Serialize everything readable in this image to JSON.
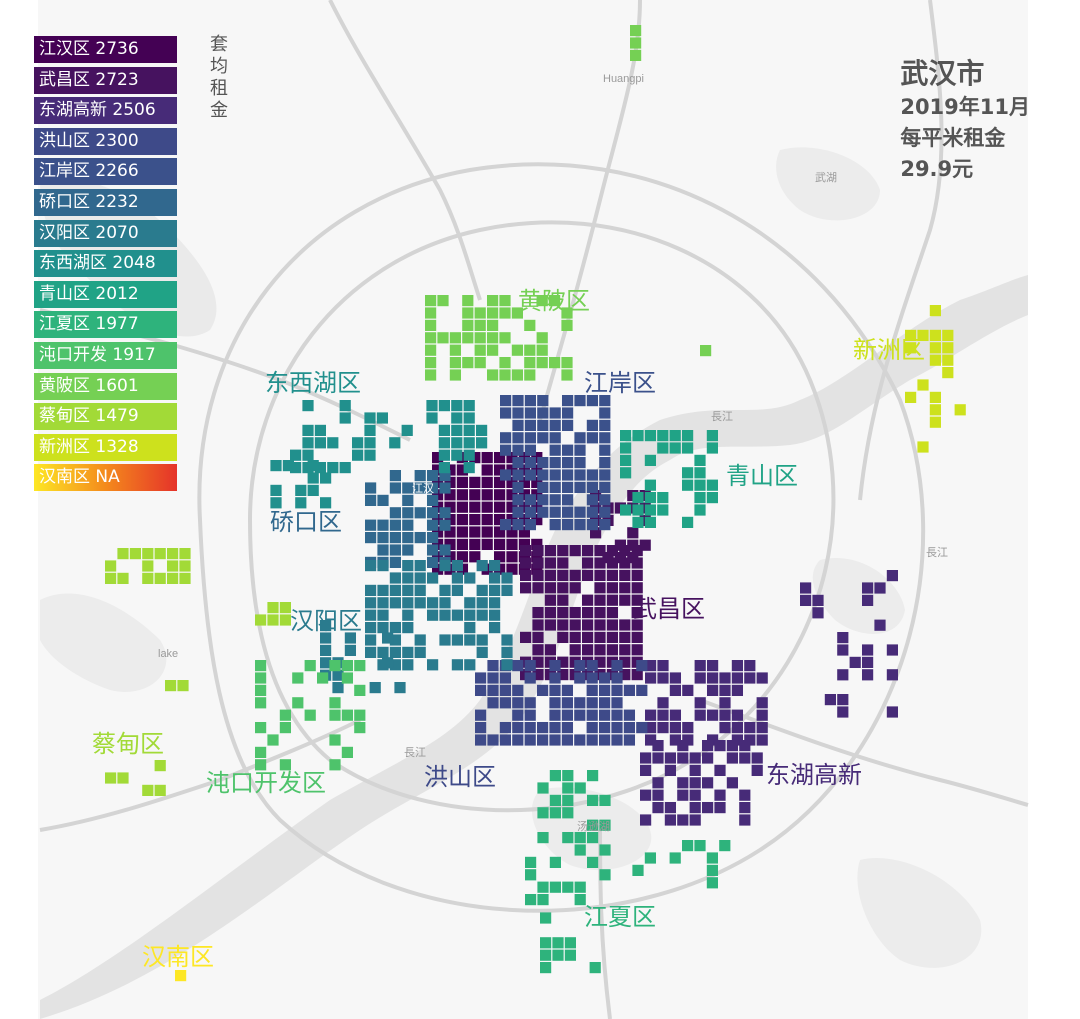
{
  "title": {
    "city": "武汉市",
    "date": "2019年11月",
    "metric": "每平米租金",
    "value": "29.9元"
  },
  "legend_title": "套均租金",
  "legend": [
    {
      "label": "江汉区 2736",
      "color": "#440154"
    },
    {
      "label": "武昌区 2723",
      "color": "#46125f"
    },
    {
      "label": "东湖高新 2506",
      "color": "#472b78"
    },
    {
      "label": "洪山区 2300",
      "color": "#3e4a89"
    },
    {
      "label": "江岸区 2266",
      "color": "#3b518b"
    },
    {
      "label": "硚口区 2232",
      "color": "#31688e"
    },
    {
      "label": "汉阳区 2070",
      "color": "#2a7b8e"
    },
    {
      "label": "东西湖区 2048",
      "color": "#21908d"
    },
    {
      "label": "青山区 2012",
      "color": "#20a386"
    },
    {
      "label": "江夏区 1977",
      "color": "#2eb37c"
    },
    {
      "label": "沌口开发 1917",
      "color": "#4ec36b"
    },
    {
      "label": "黄陂区 1601",
      "color": "#75d054"
    },
    {
      "label": "蔡甸区 1479",
      "color": "#a2da37"
    },
    {
      "label": "新洲区 1328",
      "color": "#cde11d"
    },
    {
      "label": "汉南区 NA",
      "gradient": [
        "#fde725",
        "#f48a1c",
        "#e5332a"
      ]
    }
  ],
  "district_labels": [
    {
      "text": "黄陂区",
      "color": "#75d054"
    },
    {
      "text": "江岸区",
      "color": "#3b518b"
    },
    {
      "text": "新洲区",
      "color": "#cde11d"
    },
    {
      "text": "东西湖区",
      "color": "#21908d"
    },
    {
      "text": "青山区",
      "color": "#20a386"
    },
    {
      "text": "硚口区",
      "color": "#31688e"
    },
    {
      "text": "武昌区",
      "color": "#46125f"
    },
    {
      "text": "汉阳区",
      "color": "#2a7b8e"
    },
    {
      "text": "蔡甸区",
      "color": "#a2da37"
    },
    {
      "text": "沌口开发区",
      "color": "#4ec36b"
    },
    {
      "text": "洪山区",
      "color": "#3e4a89"
    },
    {
      "text": "东湖高新",
      "color": "#472b78"
    },
    {
      "text": "江夏区",
      "color": "#2eb37c"
    },
    {
      "text": "汉南区",
      "color": "#fde725"
    }
  ],
  "basemap_labels": [
    "Huangpi",
    "武湖",
    "長江",
    "長江",
    "長江",
    "lake",
    "汤逊湖",
    "江汉"
  ]
}
